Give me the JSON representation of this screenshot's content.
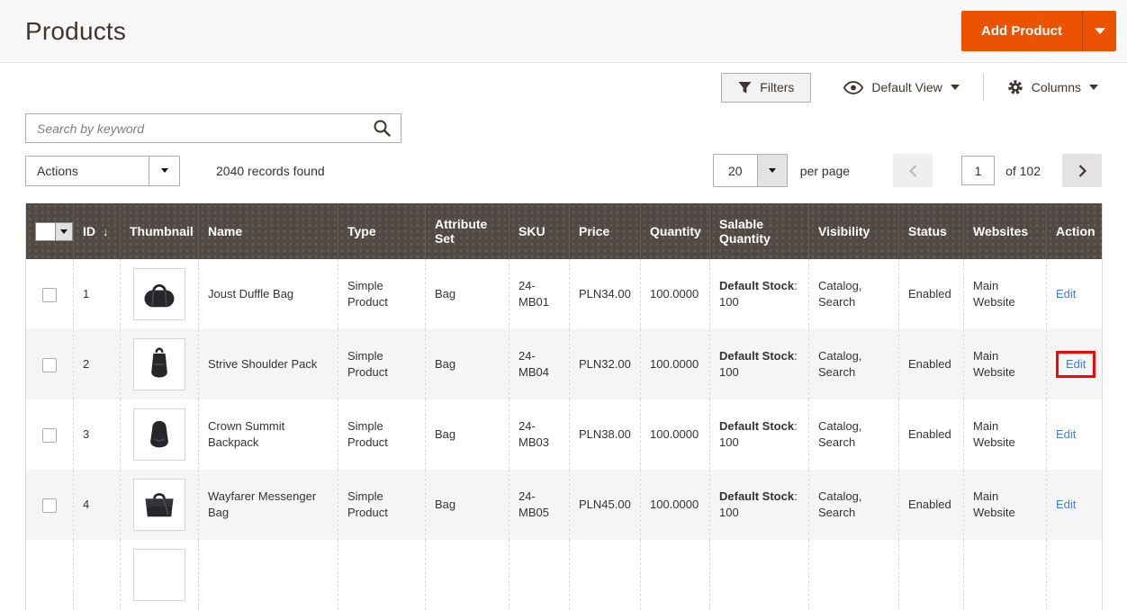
{
  "page": {
    "title": "Products"
  },
  "colors": {
    "accent_orange": "#eb5202",
    "grid_header_bg": "#514943",
    "link_blue": "#4a7dd1",
    "highlight_red": "#f40606",
    "row_alt_bg": "#f5f5f5"
  },
  "header": {
    "add_product": {
      "label": "Add Product",
      "caret_icon": "caret-down-icon"
    }
  },
  "toolbar": {
    "filters": {
      "label": "Filters",
      "icon": "funnel-icon"
    },
    "view": {
      "label": "Default View",
      "icon": "eye-icon",
      "caret_icon": "caret-down-icon"
    },
    "columns": {
      "label": "Columns",
      "icon": "gear-icon",
      "caret_icon": "caret-down-icon"
    }
  },
  "search": {
    "placeholder": "Search by keyword",
    "icon": "magnifier-icon"
  },
  "actions_bar": {
    "actions_label": "Actions",
    "records_text": "2040 records found",
    "pagination": {
      "per_page_value": "20",
      "per_page_label": "per page",
      "prev_icon": "chevron-left-icon",
      "current_page": "1",
      "total_text": "of 102",
      "next_icon": "chevron-right-icon"
    }
  },
  "grid": {
    "sort": {
      "column": "ID",
      "indicator": "↓"
    },
    "columns": [
      "ID",
      "Thumbnail",
      "Name",
      "Type",
      "Attribute Set",
      "SKU",
      "Price",
      "Quantity",
      "Salable Quantity",
      "Visibility",
      "Status",
      "Websites",
      "Action"
    ],
    "rows": [
      {
        "id": "1",
        "thumbnail": "duffle-bag",
        "name": "Joust Duffle Bag",
        "type": "Simple Product",
        "attribute_set": "Bag",
        "sku": "24-MB01",
        "price": "PLN34.00",
        "quantity": "100.0000",
        "salable_label": "Default Stock",
        "salable_value": "100",
        "visibility": "Catalog, Search",
        "status": "Enabled",
        "websites": "Main Website",
        "action": "Edit",
        "highlighted": false,
        "partial": false
      },
      {
        "id": "2",
        "thumbnail": "shoulder-pack",
        "name": "Strive Shoulder Pack",
        "type": "Simple Product",
        "attribute_set": "Bag",
        "sku": "24-MB04",
        "price": "PLN32.00",
        "quantity": "100.0000",
        "salable_label": "Default Stock",
        "salable_value": "100",
        "visibility": "Catalog, Search",
        "status": "Enabled",
        "websites": "Main Website",
        "action": "Edit",
        "highlighted": true,
        "partial": false
      },
      {
        "id": "3",
        "thumbnail": "backpack",
        "name": "Crown Summit Backpack",
        "type": "Simple Product",
        "attribute_set": "Bag",
        "sku": "24-MB03",
        "price": "PLN38.00",
        "quantity": "100.0000",
        "salable_label": "Default Stock",
        "salable_value": "100",
        "visibility": "Catalog, Search",
        "status": "Enabled",
        "websites": "Main Website",
        "action": "Edit",
        "highlighted": false,
        "partial": false
      },
      {
        "id": "4",
        "thumbnail": "messenger-bag",
        "name": "Wayfarer Messenger Bag",
        "type": "Simple Product",
        "attribute_set": "Bag",
        "sku": "24-MB05",
        "price": "PLN45.00",
        "quantity": "100.0000",
        "salable_label": "Default Stock",
        "salable_value": "100",
        "visibility": "Catalog, Search",
        "status": "Enabled",
        "websites": "Main Website",
        "action": "Edit",
        "highlighted": false,
        "partial": false
      },
      {
        "id": "",
        "thumbnail": "box-only",
        "name": "",
        "type": "",
        "attribute_set": "",
        "sku": "",
        "price": "",
        "quantity": "",
        "salable_label": "",
        "salable_value": "",
        "visibility": "",
        "status": "",
        "websites": "",
        "action": "",
        "highlighted": false,
        "partial": true
      }
    ]
  }
}
